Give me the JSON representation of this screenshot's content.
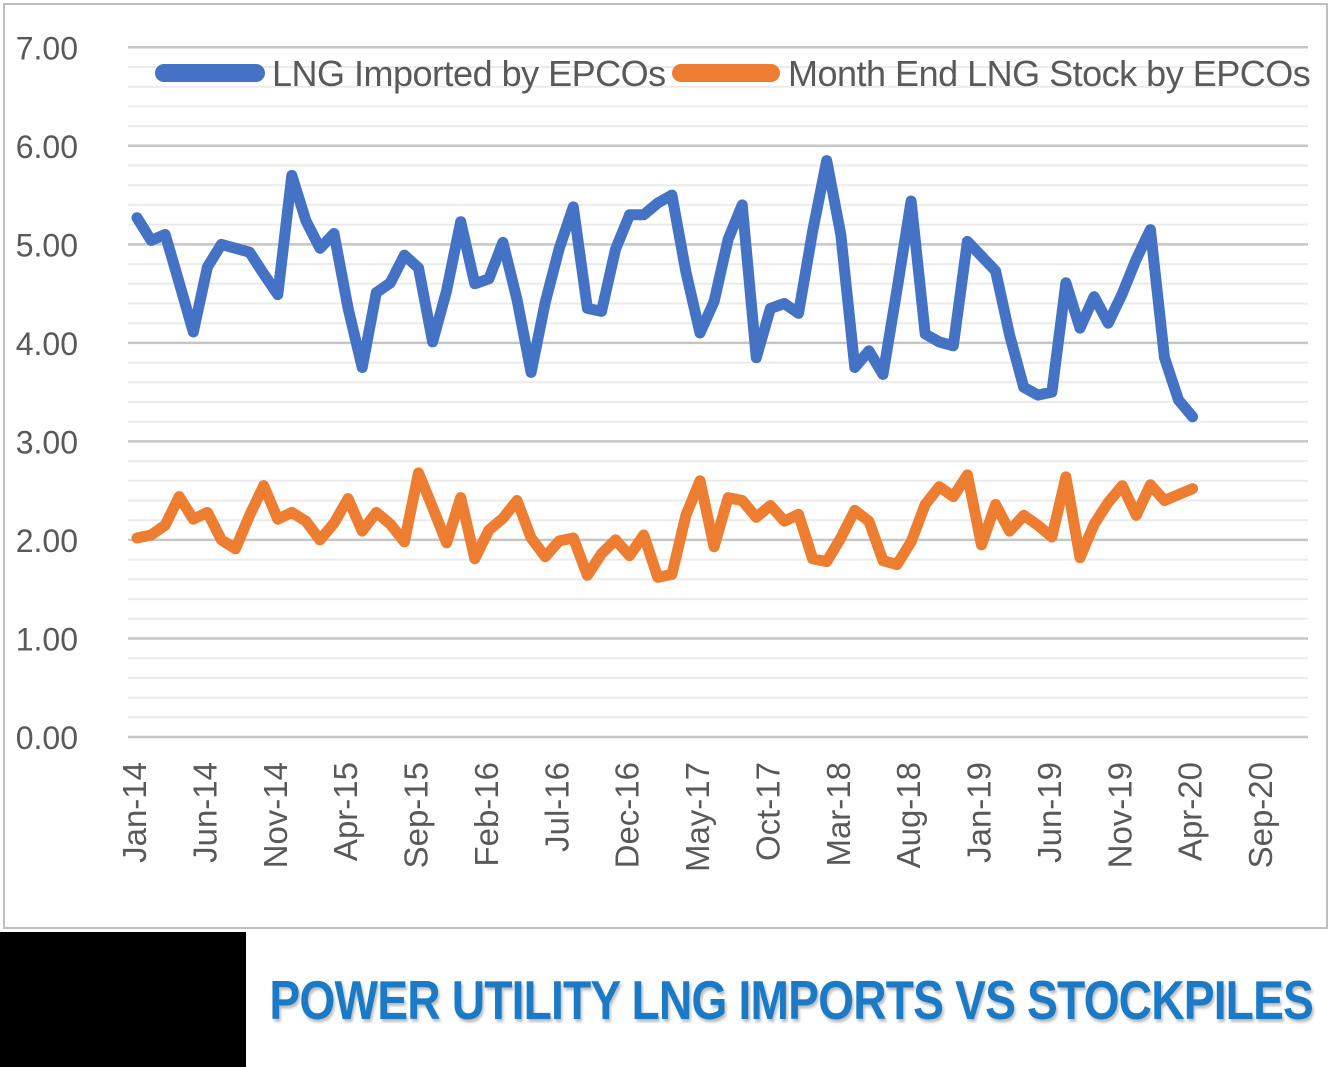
{
  "footer": {
    "title": "POWER UTILITY LNG IMPORTS VS STOCKPILES",
    "title_color": "#1B7AC6"
  },
  "legend": {
    "entries": [
      {
        "label": "LNG Imported by EPCOs",
        "color": "#4472C4"
      },
      {
        "label": "Month End LNG Stock by EPCOs",
        "color": "#ED7D31"
      }
    ]
  },
  "chart_data": {
    "type": "line",
    "title": "POWER UTILITY LNG IMPORTS VS STOCKPILES",
    "xlabel": "",
    "ylabel": "",
    "ylim": [
      0,
      7
    ],
    "y_major_step": 1,
    "y_minor_step": 0.2,
    "grid": "horizontal",
    "legend_position": "top",
    "y_tick_labels": [
      "0.00",
      "1.00",
      "2.00",
      "3.00",
      "4.00",
      "5.00",
      "6.00",
      "7.00"
    ],
    "x_tick_labels": [
      "Jan-14",
      "Jun-14",
      "Nov-14",
      "Apr-15",
      "Sep-15",
      "Feb-16",
      "Jul-16",
      "Dec-16",
      "May-17",
      "Oct-17",
      "Mar-18",
      "Aug-18",
      "Jan-19",
      "Jun-19",
      "Nov-19",
      "Apr-20",
      "Sep-20"
    ],
    "x_tick_interval_months": 5,
    "x_axis_total_months": 84,
    "categories": [
      "Jan-14",
      "Feb-14",
      "Mar-14",
      "Apr-14",
      "May-14",
      "Jun-14",
      "Jul-14",
      "Aug-14",
      "Sep-14",
      "Oct-14",
      "Nov-14",
      "Dec-14",
      "Jan-15",
      "Feb-15",
      "Mar-15",
      "Apr-15",
      "May-15",
      "Jun-15",
      "Jul-15",
      "Aug-15",
      "Sep-15",
      "Oct-15",
      "Nov-15",
      "Dec-15",
      "Jan-16",
      "Feb-16",
      "Mar-16",
      "Apr-16",
      "May-16",
      "Jun-16",
      "Jul-16",
      "Aug-16",
      "Sep-16",
      "Oct-16",
      "Nov-16",
      "Dec-16",
      "Jan-17",
      "Feb-17",
      "Mar-17",
      "Apr-17",
      "May-17",
      "Jun-17",
      "Jul-17",
      "Aug-17",
      "Sep-17",
      "Oct-17",
      "Nov-17",
      "Dec-17",
      "Jan-18",
      "Feb-18",
      "Mar-18",
      "Apr-18",
      "May-18",
      "Jun-18",
      "Jul-18",
      "Aug-18",
      "Sep-18",
      "Oct-18",
      "Nov-18",
      "Dec-18",
      "Jan-19",
      "Feb-19",
      "Mar-19",
      "Apr-19",
      "May-19",
      "Jun-19",
      "Jul-19",
      "Aug-19",
      "Sep-19",
      "Oct-19",
      "Nov-19",
      "Dec-19",
      "Jan-20",
      "Feb-20",
      "Mar-20",
      "Apr-20"
    ],
    "series": [
      {
        "name": "LNG Imported by EPCOs",
        "color": "#4472C4",
        "values": [
          5.27,
          5.04,
          5.1,
          4.61,
          4.11,
          4.77,
          5.0,
          4.96,
          4.92,
          4.7,
          4.49,
          5.7,
          5.24,
          4.96,
          5.11,
          4.35,
          3.75,
          4.51,
          4.61,
          4.89,
          4.76,
          4.01,
          4.53,
          5.23,
          4.6,
          4.65,
          5.02,
          4.44,
          3.7,
          4.41,
          4.96,
          5.38,
          4.35,
          4.32,
          4.95,
          5.3,
          5.3,
          5.42,
          5.5,
          4.72,
          4.1,
          4.42,
          5.05,
          5.4,
          3.85,
          4.35,
          4.4,
          4.3,
          5.13,
          5.85,
          5.1,
          3.75,
          3.92,
          3.68,
          4.54,
          5.44,
          4.09,
          4.01,
          3.97,
          5.03,
          4.88,
          4.73,
          4.08,
          3.55,
          3.47,
          3.5,
          4.61,
          4.15,
          4.47,
          4.2,
          4.5,
          4.85,
          5.15,
          3.85,
          3.42,
          3.25
        ]
      },
      {
        "name": "Month End LNG Stock by EPCOs",
        "color": "#ED7D31",
        "values": [
          2.02,
          2.05,
          2.15,
          2.44,
          2.21,
          2.28,
          2.0,
          1.91,
          2.25,
          2.55,
          2.21,
          2.28,
          2.19,
          2.0,
          2.17,
          2.42,
          2.09,
          2.28,
          2.16,
          1.98,
          2.68,
          2.33,
          1.97,
          2.43,
          1.81,
          2.1,
          2.22,
          2.4,
          2.02,
          1.83,
          1.99,
          2.02,
          1.64,
          1.86,
          2.0,
          1.84,
          2.05,
          1.62,
          1.65,
          2.25,
          2.6,
          1.93,
          2.43,
          2.4,
          2.23,
          2.35,
          2.19,
          2.26,
          1.81,
          1.78,
          2.02,
          2.3,
          2.19,
          1.79,
          1.75,
          1.98,
          2.36,
          2.54,
          2.44,
          2.66,
          1.95,
          2.36,
          2.09,
          2.25,
          2.15,
          2.03,
          2.64,
          1.82,
          2.16,
          2.38,
          2.55,
          2.25,
          2.56,
          2.4,
          2.46,
          2.52
        ]
      }
    ]
  }
}
